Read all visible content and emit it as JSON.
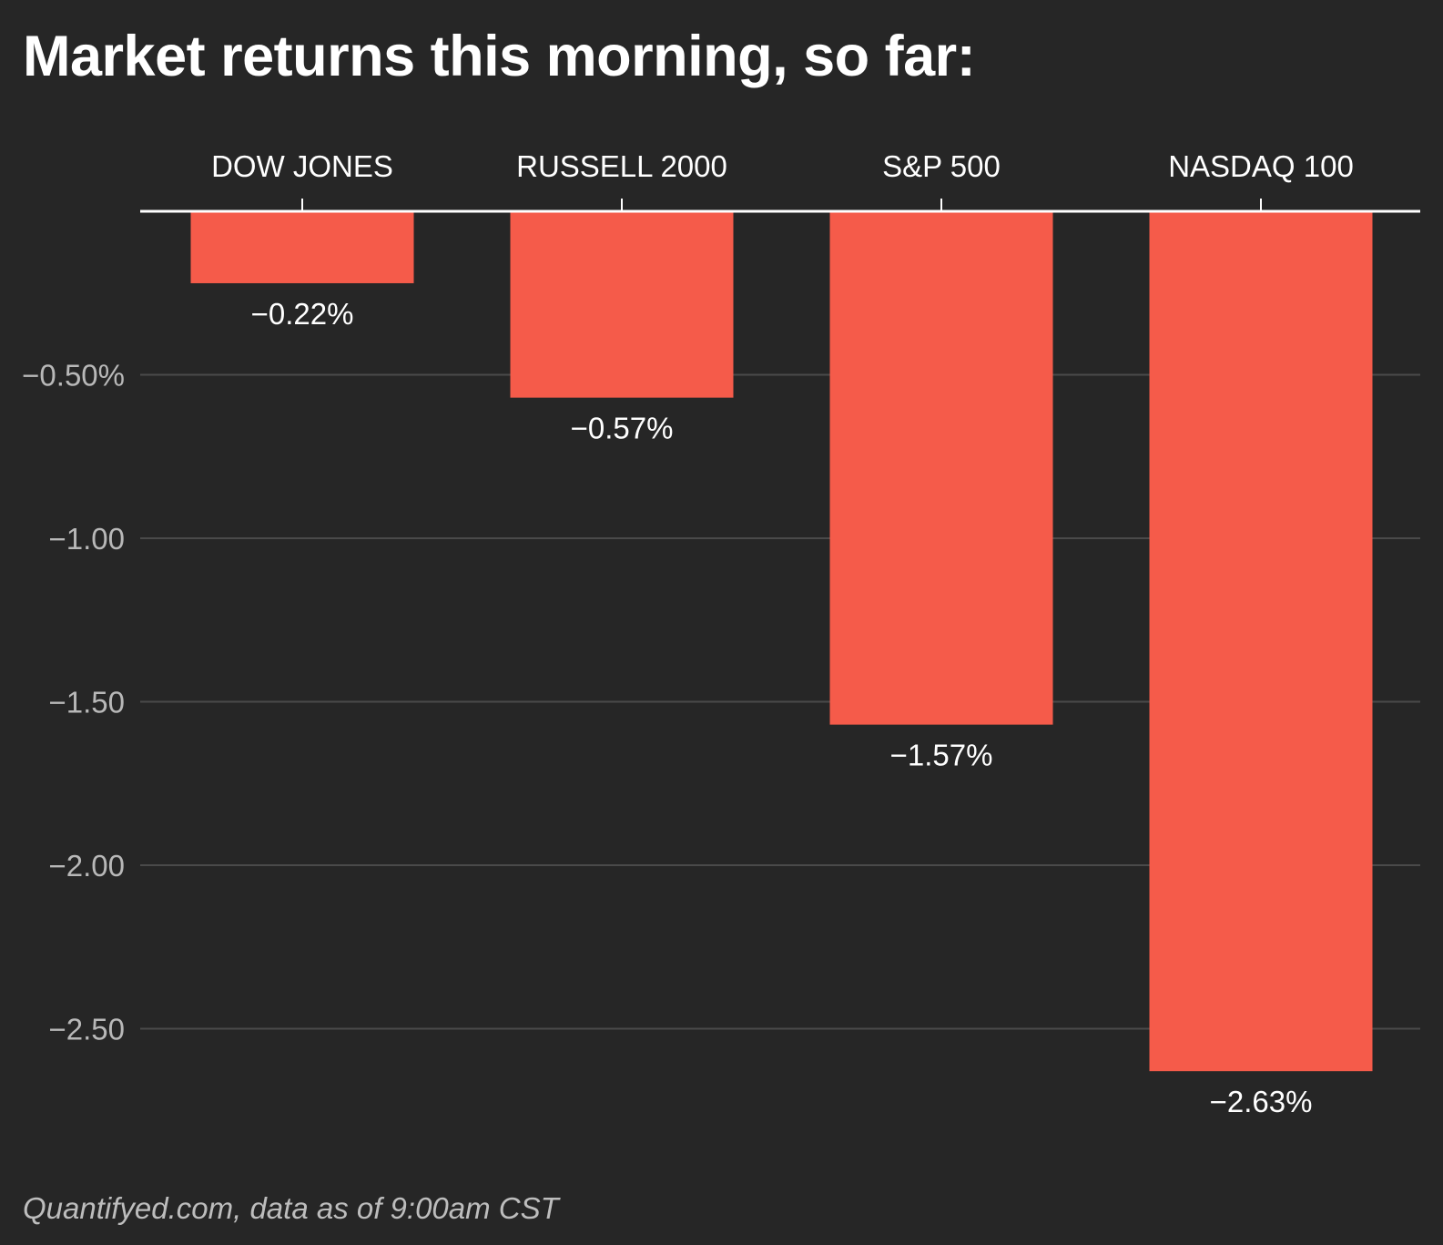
{
  "title": "Market returns this morning, so far:",
  "source": "Quantifyed.com, data as of 9:00am CST",
  "colors": {
    "background": "#262626",
    "bar": "#f55b4a",
    "gridline": "#4a4a4a",
    "axis": "#ffffff"
  },
  "chart_data": {
    "type": "bar",
    "orientation": "vertical",
    "categories": [
      "DOW JONES",
      "RUSSELL 2000",
      "S&P 500",
      "NASDAQ 100"
    ],
    "values": [
      -0.22,
      -0.57,
      -1.57,
      -2.63
    ],
    "value_labels": [
      "−0.22%",
      "−0.57%",
      "−1.57%",
      "−2.63%"
    ],
    "title": "Market returns this morning, so far:",
    "xlabel": "",
    "ylabel": "",
    "ylim": [
      -2.76,
      0
    ],
    "yticks": [
      -0.5,
      -1.0,
      -1.5,
      -2.0,
      -2.5
    ],
    "ytick_labels": [
      "−0.50%",
      "−1.00",
      "−1.50",
      "−2.00",
      "−2.50"
    ],
    "grid": true,
    "category_axis_position": "top",
    "legend": "none"
  }
}
